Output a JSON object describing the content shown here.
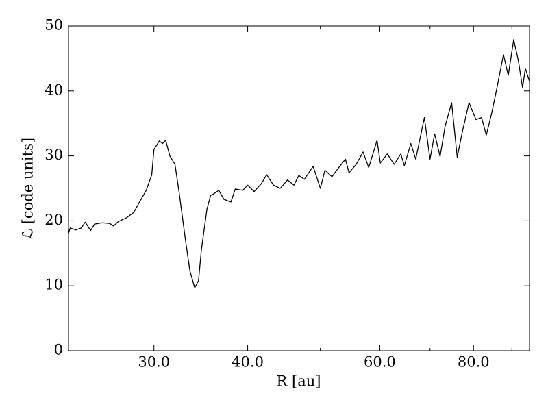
{
  "chart_data": {
    "type": "line",
    "xlabel": "R [au]",
    "ylabel": "ℒ [code units]",
    "xscale": "log",
    "x": [
      23.08,
      23.2,
      23.6,
      24.0,
      24.3,
      24.7,
      25.0,
      25.6,
      26.2,
      26.5,
      26.9,
      27.6,
      28.2,
      28.7,
      29.3,
      29.8,
      30.0,
      30.5,
      30.8,
      31.1,
      31.5,
      32.0,
      32.4,
      33.0,
      33.5,
      34.0,
      34.4,
      34.7,
      35.3,
      35.7,
      36.2,
      36.6,
      37.2,
      38.0,
      38.5,
      39.4,
      40.0,
      40.8,
      41.7,
      42.4,
      43.3,
      44.2,
      45.2,
      46.1,
      46.8,
      47.6,
      48.9,
      50.0,
      50.7,
      51.8,
      52.9,
      54.0,
      54.6,
      55.8,
      57.0,
      58.0,
      59.5,
      60.1,
      61.4,
      62.7,
      64.0,
      64.7,
      66.0,
      67.0,
      68.8,
      70.0,
      71.0,
      72.2,
      73.3,
      74.8,
      76.1,
      77.2,
      78.9,
      80.6,
      82.0,
      83.2,
      84.6,
      85.9,
      87.7,
      89.0,
      90.5,
      91.8,
      93.0,
      93.8,
      94.9
    ],
    "series": [
      {
        "color": "#000000",
        "values": [
          18.1,
          18.9,
          18.6,
          18.9,
          19.8,
          18.5,
          19.5,
          19.7,
          19.6,
          19.2,
          19.9,
          20.5,
          21.3,
          22.9,
          24.7,
          27.1,
          31.0,
          32.3,
          31.9,
          32.4,
          30.0,
          28.7,
          24.5,
          17.6,
          12.3,
          9.7,
          10.8,
          15.5,
          21.8,
          23.9,
          24.3,
          24.7,
          23.3,
          22.9,
          24.9,
          24.7,
          25.5,
          24.5,
          25.7,
          27.1,
          25.5,
          25.0,
          26.3,
          25.5,
          27.0,
          26.4,
          28.4,
          25.0,
          27.8,
          26.8,
          28.2,
          29.5,
          27.4,
          28.7,
          30.6,
          28.2,
          32.4,
          28.9,
          30.3,
          28.7,
          30.3,
          28.5,
          31.9,
          29.5,
          35.9,
          29.5,
          33.4,
          29.9,
          34.5,
          38.2,
          29.8,
          33.4,
          38.2,
          35.6,
          35.9,
          33.2,
          36.6,
          40.3,
          45.6,
          42.4,
          47.9,
          44.7,
          40.5,
          43.5,
          41.6
        ]
      }
    ],
    "xlim": [
      23.08,
      95
    ],
    "xticks": [
      {
        "value": 30,
        "label": "30.0"
      },
      {
        "value": 40,
        "label": "40.0"
      },
      {
        "value": 60,
        "label": "60.0"
      },
      {
        "value": 80,
        "label": "80.0"
      }
    ],
    "xminorticks": [
      50,
      70,
      90
    ],
    "ylim": [
      0,
      50
    ],
    "yticks": [
      0,
      10,
      20,
      30,
      40,
      50
    ]
  }
}
